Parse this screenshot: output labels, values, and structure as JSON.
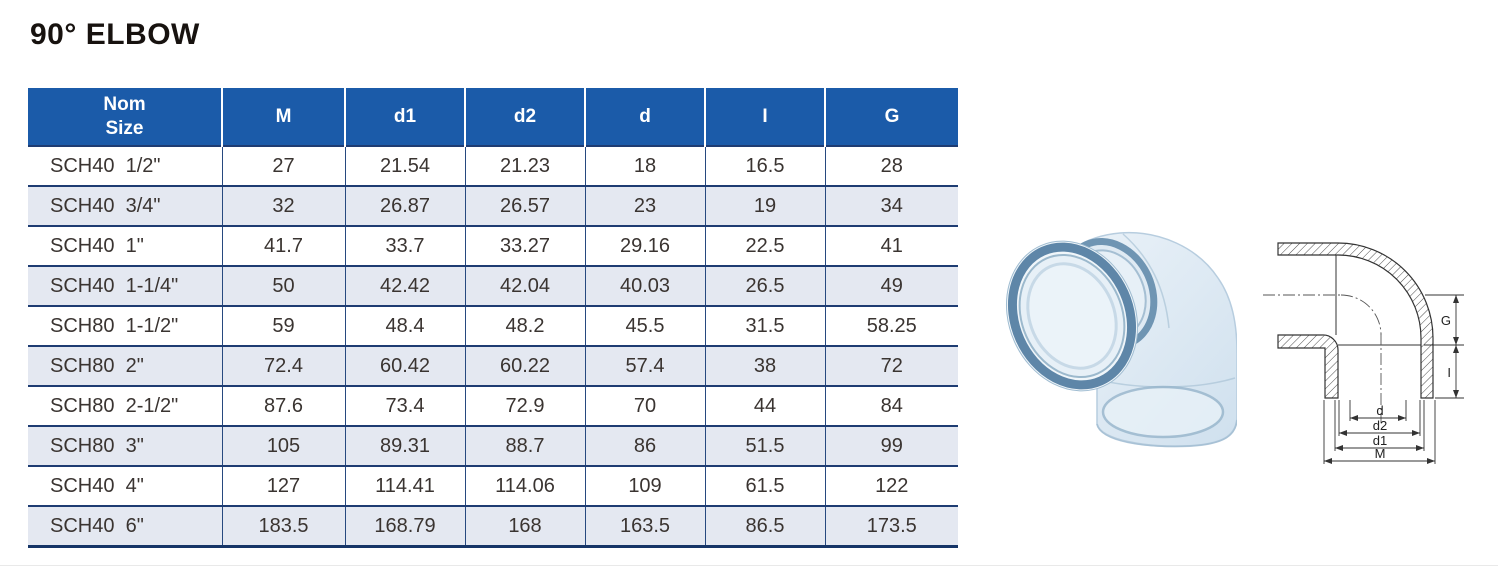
{
  "title": "90° ELBOW",
  "table": {
    "header": {
      "col1_line1": "Nom",
      "col1_line2": "Size",
      "cols": [
        "M",
        "d1",
        "d2",
        "d",
        "I",
        "G"
      ]
    },
    "rows": [
      {
        "nom": "SCH40  1/2\"",
        "values": [
          "27",
          "21.54",
          "21.23",
          "18",
          "16.5",
          "28"
        ]
      },
      {
        "nom": "SCH40  3/4\"",
        "values": [
          "32",
          "26.87",
          "26.57",
          "23",
          "19",
          "34"
        ]
      },
      {
        "nom": "SCH40  1\"",
        "values": [
          "41.7",
          "33.7",
          "33.27",
          "29.16",
          "22.5",
          "41"
        ]
      },
      {
        "nom": "SCH40  1-1/4\"",
        "values": [
          "50",
          "42.42",
          "42.04",
          "40.03",
          "26.5",
          "49"
        ]
      },
      {
        "nom": "SCH80  1-1/2\"",
        "values": [
          "59",
          "48.4",
          "48.2",
          "45.5",
          "31.5",
          "58.25"
        ]
      },
      {
        "nom": "SCH80  2\"",
        "values": [
          "72.4",
          "60.42",
          "60.22",
          "57.4",
          "38",
          "72"
        ]
      },
      {
        "nom": "SCH80  2-1/2\"",
        "values": [
          "87.6",
          "73.4",
          "72.9",
          "70",
          "44",
          "84"
        ]
      },
      {
        "nom": "SCH80  3\"",
        "values": [
          "105",
          "89.31",
          "88.7",
          "86",
          "51.5",
          "99"
        ]
      },
      {
        "nom": "SCH40  4\"",
        "values": [
          "127",
          "114.41",
          "114.06",
          "109",
          "61.5",
          "122"
        ]
      },
      {
        "nom": "SCH40  6\"",
        "values": [
          "183.5",
          "168.79",
          "168",
          "163.5",
          "86.5",
          "173.5"
        ]
      }
    ]
  },
  "diagram": {
    "labels": {
      "g": "G",
      "i": "I",
      "d": "d",
      "d2": "d2",
      "d1": "d1",
      "m": "M"
    }
  },
  "colors": {
    "header_bg": "#1b5ba9",
    "row_alt": "#e4e8f1",
    "grid_border": "#1e3c72",
    "rim_blue": "#5e86a8",
    "body_blue": "#dfeaf3"
  }
}
